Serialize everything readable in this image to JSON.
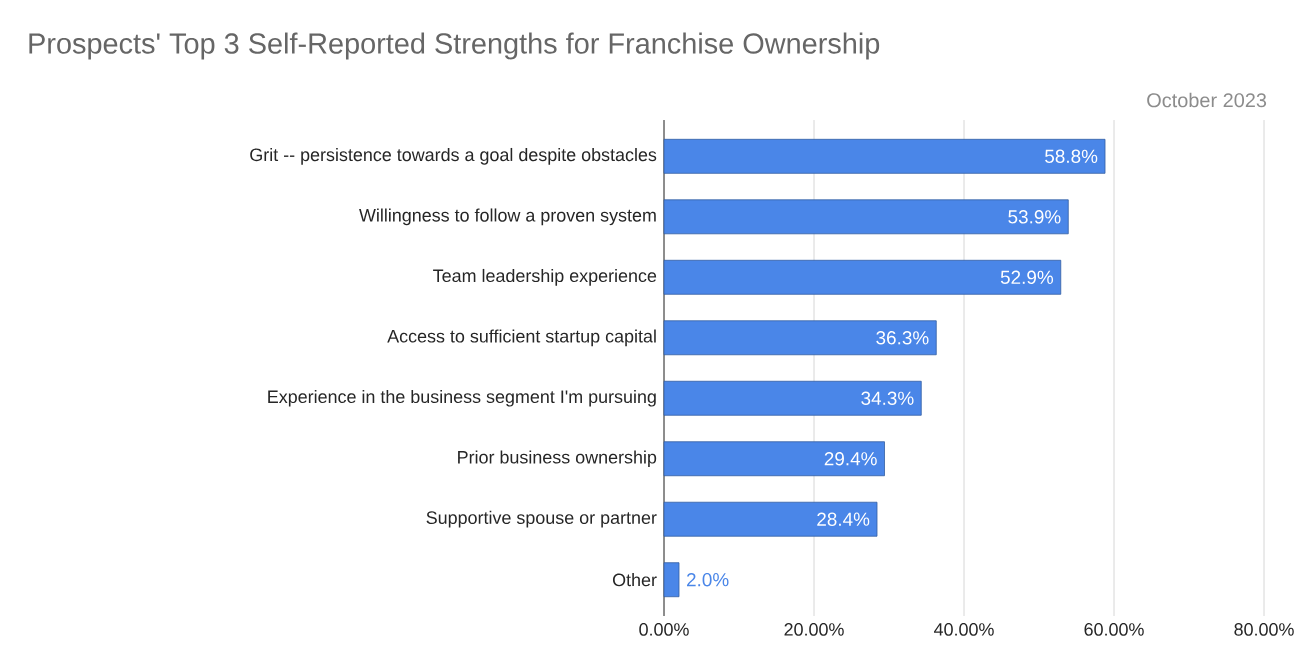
{
  "chart_data": {
    "type": "bar",
    "orientation": "horizontal",
    "title": "Prospects' Top 3 Self-Reported Strengths for Franchise Ownership",
    "subtitle": "October 2023",
    "categories": [
      "Grit -- persistence towards a goal despite obstacles",
      "Willingness to follow a proven system",
      "Team leadership experience",
      "Access to sufficient startup capital",
      "Experience in the business segment I'm pursuing",
      "Prior business ownership",
      "Supportive spouse or partner",
      "Other"
    ],
    "values": [
      58.8,
      53.9,
      52.9,
      36.3,
      34.3,
      29.4,
      28.4,
      2.0
    ],
    "value_labels": [
      "58.8%",
      "53.9%",
      "52.9%",
      "36.3%",
      "34.3%",
      "29.4%",
      "28.4%",
      "2.0%"
    ],
    "color": "#4a86e8",
    "xlim": [
      0,
      80
    ],
    "xticks": [
      {
        "value": 0,
        "label": "0.00%"
      },
      {
        "value": 20,
        "label": "20.00%"
      },
      {
        "value": 40,
        "label": "40.00%"
      },
      {
        "value": 60,
        "label": "60.00%"
      },
      {
        "value": 80,
        "label": "80.00%"
      }
    ],
    "grid": "x"
  }
}
